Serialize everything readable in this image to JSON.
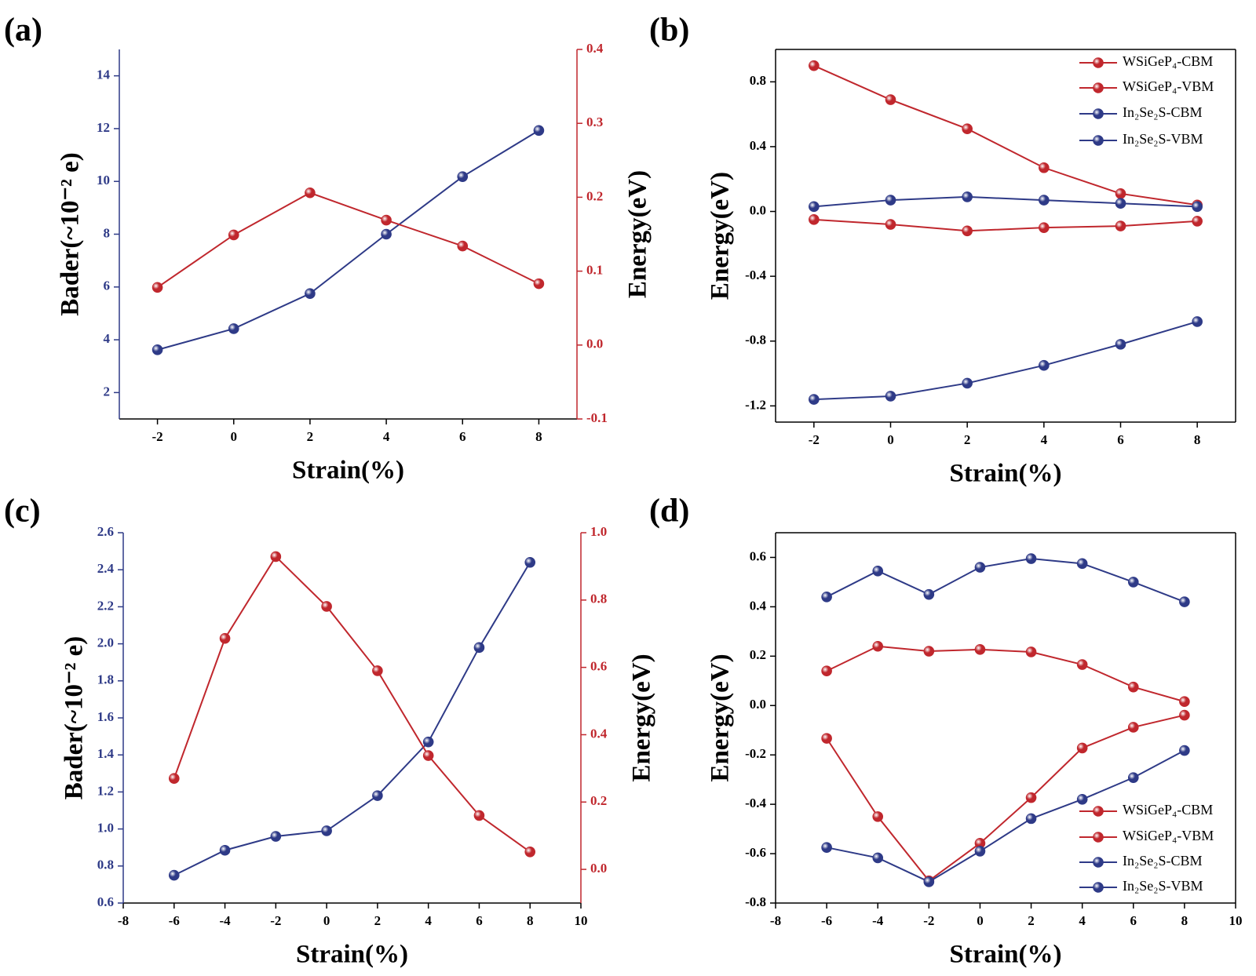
{
  "chart_data": [
    {
      "type": "line",
      "panel_label": "(a)",
      "xlabel": "Strain(%)",
      "ylabel": "Bader(~10⁻² e)",
      "y2label": "Energy(eV)",
      "x": [
        -2,
        0,
        2,
        4,
        6,
        8
      ],
      "xlim": [
        -3,
        9
      ],
      "xticks": [
        -2,
        0,
        2,
        4,
        6,
        8
      ],
      "ylim": [
        1,
        15
      ],
      "yticks": [
        2,
        4,
        6,
        8,
        10,
        12,
        14
      ],
      "ycolor": "#2e3a87",
      "y2lim": [
        -0.1,
        0.4
      ],
      "y2ticks": [
        -0.1,
        {
          "value": 0,
          "label": "0.0"
        },
        0.1,
        0.2,
        0.3,
        0.4
      ],
      "y2color": "#c0272d",
      "series": [
        {
          "color": "#2e3a87",
          "values": [
            3.62,
            4.42,
            5.75,
            8.0,
            10.18,
            11.93
          ]
        },
        {
          "color": "#c0272d",
          "axis": "y2",
          "values": [
            0.078,
            0.149,
            0.206,
            0.169,
            0.134,
            0.083
          ]
        }
      ]
    },
    {
      "type": "line",
      "panel_label": "(b)",
      "xlabel": "Strain(%)",
      "ylabel": "Energy(eV)",
      "x": [
        -2,
        0,
        2,
        4,
        6,
        8
      ],
      "xlim": [
        -3,
        9
      ],
      "xticks": [
        -2,
        0,
        2,
        4,
        6,
        8
      ],
      "ylim": [
        -1.3,
        1.0
      ],
      "yticks": [
        -1.2,
        -0.8,
        -0.4,
        {
          "value": 0,
          "label": "0.0"
        },
        0.4,
        0.8
      ],
      "legend": "upper right",
      "series": [
        {
          "name": "WSiGeP₄-CBM",
          "color": "#c0272d",
          "values": [
            0.9,
            0.69,
            0.51,
            0.27,
            0.11,
            0.04
          ]
        },
        {
          "name": "WSiGeP₄-VBM",
          "color": "#c0272d",
          "values": [
            -0.05,
            -0.08,
            -0.12,
            -0.1,
            -0.09,
            -0.06
          ]
        },
        {
          "name": "In₂Se₂S-CBM",
          "color": "#2e3a87",
          "values": [
            0.03,
            0.07,
            0.09,
            0.07,
            0.05,
            0.03
          ]
        },
        {
          "name": "In₂Se₂S-VBM",
          "color": "#2e3a87",
          "values": [
            -1.16,
            -1.14,
            -1.06,
            -0.95,
            -0.82,
            -0.68
          ]
        }
      ]
    },
    {
      "type": "line",
      "panel_label": "(c)",
      "xlabel": "Strain(%)",
      "ylabel": "Bader(~10⁻² e)",
      "y2label": "Energy(eV)",
      "x": [
        -6,
        -4,
        -2,
        0,
        2,
        4,
        6,
        8
      ],
      "xlim": [
        -8,
        10
      ],
      "xticks": [
        -8,
        -6,
        -4,
        -2,
        0,
        2,
        4,
        6,
        8,
        10
      ],
      "ylim": [
        0.6,
        2.6
      ],
      "yticks": [
        0.6,
        0.8,
        {
          "value": 1,
          "label": "1.0"
        },
        1.2,
        1.4,
        1.6,
        1.8,
        {
          "value": 2,
          "label": "2.0"
        },
        2.2,
        2.4,
        2.6
      ],
      "ycolor": "#2e3a87",
      "y2lim": [
        -0.1,
        1.0
      ],
      "y2ticks": [
        {
          "value": 0,
          "label": "0.0"
        },
        0.2,
        0.4,
        0.6,
        0.8,
        {
          "value": 1,
          "label": "1.0"
        }
      ],
      "y2color": "#c0272d",
      "series": [
        {
          "color": "#2e3a87",
          "values": [
            0.75,
            0.885,
            0.96,
            0.99,
            1.18,
            1.47,
            1.98,
            2.44
          ]
        },
        {
          "color": "#c0272d",
          "axis": "y2",
          "values": [
            0.27,
            0.686,
            0.929,
            0.781,
            0.59,
            0.338,
            0.16,
            0.052
          ]
        }
      ]
    },
    {
      "type": "line",
      "panel_label": "(d)",
      "xlabel": "Strain(%)",
      "ylabel": "Energy(eV)",
      "x": [
        -6,
        -4,
        -2,
        0,
        2,
        4,
        6,
        8
      ],
      "xlim": [
        -8,
        10
      ],
      "xticks": [
        -8,
        -6,
        -4,
        -2,
        0,
        2,
        4,
        6,
        8,
        10
      ],
      "ylim": [
        -0.8,
        0.7
      ],
      "yticks": [
        -0.8,
        -0.6,
        -0.4,
        -0.2,
        {
          "value": 0,
          "label": "0.0"
        },
        0.2,
        0.4,
        0.6
      ],
      "legend": "lower right",
      "series": [
        {
          "name": "WSiGeP₄-CBM",
          "color": "#c0272d",
          "values": [
            0.14,
            0.24,
            0.22,
            0.227,
            0.217,
            0.166,
            0.075,
            0.016
          ]
        },
        {
          "name": "WSiGeP₄-VBM",
          "color": "#c0272d",
          "values": [
            -0.133,
            -0.45,
            -0.71,
            -0.558,
            -0.373,
            -0.172,
            -0.088,
            -0.039
          ]
        },
        {
          "name": "In₂Se₂S-CBM",
          "color": "#2e3a87",
          "values": [
            0.44,
            0.545,
            0.45,
            0.56,
            0.595,
            0.575,
            0.5,
            0.42
          ]
        },
        {
          "name": "In₂Se₂S-VBM",
          "color": "#2e3a87",
          "values": [
            -0.575,
            -0.617,
            -0.714,
            -0.59,
            -0.458,
            -0.38,
            -0.292,
            -0.182
          ]
        }
      ]
    }
  ]
}
